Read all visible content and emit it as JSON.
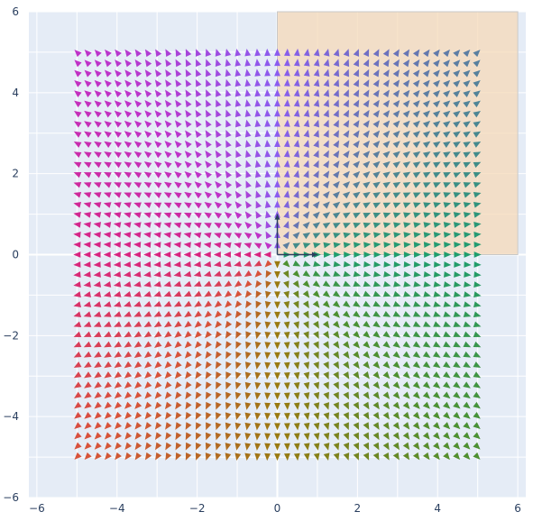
{
  "chart_data": {
    "type": "quiver",
    "title": "",
    "xlabel": "",
    "ylabel": "",
    "xlim": [
      -6.2,
      6.2
    ],
    "ylim": [
      -6,
      6
    ],
    "x_ticks": [
      -6,
      -4,
      -2,
      0,
      2,
      4,
      6
    ],
    "y_ticks": [
      -6,
      -4,
      -2,
      0,
      2,
      4,
      6
    ],
    "x_tick_labels": [
      "−6",
      "−4",
      "−2",
      "0",
      "2",
      "4",
      "6"
    ],
    "y_tick_labels": [
      "−6",
      "−4",
      "−2",
      "0",
      "2",
      "4",
      "6"
    ],
    "grid": true,
    "background": "#e5ecf6",
    "field": {
      "x_range": [
        -5,
        5
      ],
      "y_range": [
        -5,
        5
      ],
      "points_per_axis": 41,
      "direction": "radial outward from origin",
      "color_by": "angle",
      "colors": {
        "east": "#1f9e6e",
        "north_east": "#5a7fa0",
        "north": "#8a5cf0",
        "west": "#d8247f",
        "south_west": "#d85a3a",
        "south": "#9a7a10",
        "south_east": "#4e9030"
      }
    },
    "shaded_region": {
      "x": [
        0,
        6
      ],
      "y": [
        0,
        6
      ],
      "color": "#f5d9b8"
    },
    "basis_arrows": [
      {
        "to": [
          1,
          0
        ],
        "color": "#2a3f5f"
      },
      {
        "to": [
          0,
          1
        ],
        "color": "#2a3f5f"
      }
    ]
  }
}
